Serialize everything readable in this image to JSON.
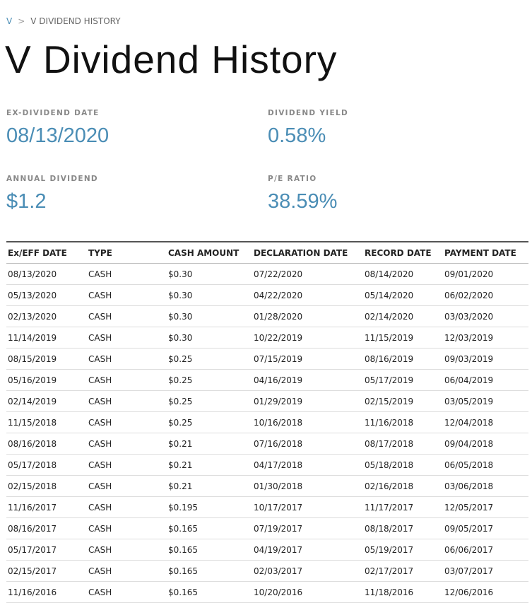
{
  "breadcrumb": {
    "root": "V",
    "separator": ">",
    "current": "V DIVIDEND HISTORY"
  },
  "title": "V Dividend History",
  "stats": [
    {
      "label": "EX-DIVIDEND DATE",
      "value": "08/13/2020"
    },
    {
      "label": "DIVIDEND YIELD",
      "value": "0.58%"
    },
    {
      "label": "ANNUAL DIVIDEND",
      "value": "$1.2"
    },
    {
      "label": "P/E RATIO",
      "value": "38.59%"
    }
  ],
  "table": {
    "headers": [
      "Ex/EFF DATE",
      "TYPE",
      "CASH AMOUNT",
      "DECLARATION DATE",
      "RECORD DATE",
      "PAYMENT DATE"
    ],
    "rows": [
      [
        "08/13/2020",
        "CASH",
        "$0.30",
        "07/22/2020",
        "08/14/2020",
        "09/01/2020"
      ],
      [
        "05/13/2020",
        "CASH",
        "$0.30",
        "04/22/2020",
        "05/14/2020",
        "06/02/2020"
      ],
      [
        "02/13/2020",
        "CASH",
        "$0.30",
        "01/28/2020",
        "02/14/2020",
        "03/03/2020"
      ],
      [
        "11/14/2019",
        "CASH",
        "$0.30",
        "10/22/2019",
        "11/15/2019",
        "12/03/2019"
      ],
      [
        "08/15/2019",
        "CASH",
        "$0.25",
        "07/15/2019",
        "08/16/2019",
        "09/03/2019"
      ],
      [
        "05/16/2019",
        "CASH",
        "$0.25",
        "04/16/2019",
        "05/17/2019",
        "06/04/2019"
      ],
      [
        "02/14/2019",
        "CASH",
        "$0.25",
        "01/29/2019",
        "02/15/2019",
        "03/05/2019"
      ],
      [
        "11/15/2018",
        "CASH",
        "$0.25",
        "10/16/2018",
        "11/16/2018",
        "12/04/2018"
      ],
      [
        "08/16/2018",
        "CASH",
        "$0.21",
        "07/16/2018",
        "08/17/2018",
        "09/04/2018"
      ],
      [
        "05/17/2018",
        "CASH",
        "$0.21",
        "04/17/2018",
        "05/18/2018",
        "06/05/2018"
      ],
      [
        "02/15/2018",
        "CASH",
        "$0.21",
        "01/30/2018",
        "02/16/2018",
        "03/06/2018"
      ],
      [
        "11/16/2017",
        "CASH",
        "$0.195",
        "10/17/2017",
        "11/17/2017",
        "12/05/2017"
      ],
      [
        "08/16/2017",
        "CASH",
        "$0.165",
        "07/19/2017",
        "08/18/2017",
        "09/05/2017"
      ],
      [
        "05/17/2017",
        "CASH",
        "$0.165",
        "04/19/2017",
        "05/19/2017",
        "06/06/2017"
      ],
      [
        "02/15/2017",
        "CASH",
        "$0.165",
        "02/03/2017",
        "02/17/2017",
        "03/07/2017"
      ],
      [
        "11/16/2016",
        "CASH",
        "$0.165",
        "10/20/2016",
        "11/18/2016",
        "12/06/2016"
      ]
    ]
  }
}
